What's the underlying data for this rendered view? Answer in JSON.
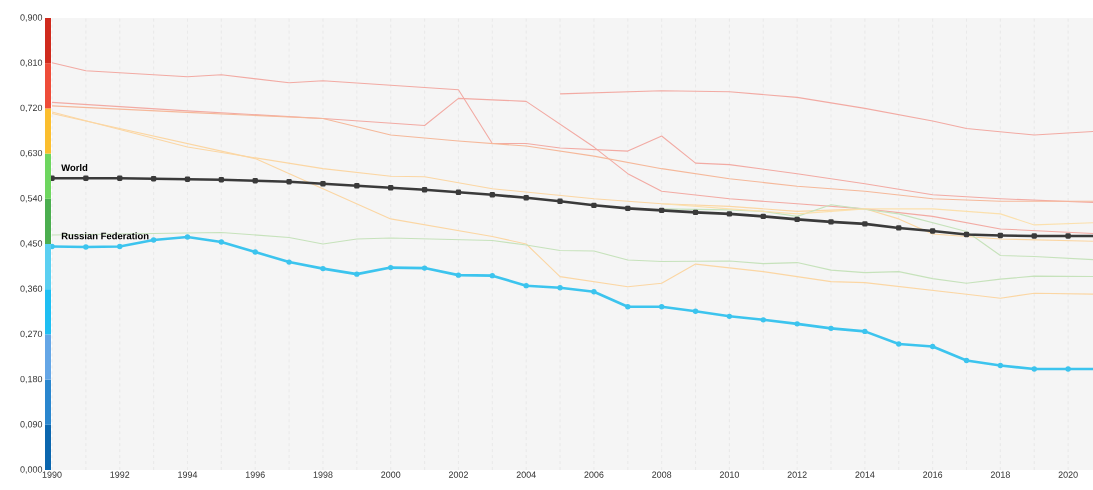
{
  "chart_data": {
    "type": "line",
    "xlim": [
      1990,
      2021
    ],
    "ylim": [
      0,
      0.9
    ],
    "xticks": [
      1990,
      {
        "value": 1991,
        "label": null
      },
      1992,
      {
        "value": 1993,
        "label": null
      },
      1994,
      {
        "value": 1995,
        "label": null
      },
      1996,
      {
        "value": 1997,
        "label": null
      },
      1998,
      {
        "value": 1999,
        "label": null
      },
      2000,
      {
        "value": 2001,
        "label": null
      },
      2002,
      {
        "value": 2003,
        "label": null
      },
      2004,
      {
        "value": 2005,
        "label": null
      },
      2006,
      {
        "value": 2007,
        "label": null
      },
      2008,
      {
        "value": 2009,
        "label": null
      },
      2010,
      {
        "value": 2011,
        "label": null
      },
      2012,
      {
        "value": 2013,
        "label": null
      },
      2014,
      {
        "value": 2015,
        "label": null
      },
      2016,
      {
        "value": 2017,
        "label": null
      },
      2018,
      {
        "value": 2019,
        "label": null
      },
      2020,
      {
        "value": 2021,
        "label": null
      }
    ],
    "yticks": [
      {
        "value": 0,
        "label": "0,000"
      },
      {
        "value": 0.09,
        "label": "0,090"
      },
      {
        "value": 0.18,
        "label": "0,180"
      },
      {
        "value": 0.27,
        "label": "0,270"
      },
      {
        "value": 0.36,
        "label": "0,360"
      },
      {
        "value": 0.45,
        "label": "0,450"
      },
      {
        "value": 0.54,
        "label": "0,540"
      },
      {
        "value": 0.63,
        "label": "0,630"
      },
      {
        "value": 0.72,
        "label": "0,720"
      },
      {
        "value": 0.81,
        "label": "0,810"
      },
      {
        "value": 0.9,
        "label": "0,900"
      }
    ],
    "grid": "x",
    "series": [
      {
        "color": "#f2aaa3",
        "x": [
          1990,
          1991,
          1994,
          1995,
          1997,
          1998,
          2002,
          2003,
          2004,
          2005,
          2006,
          2007,
          2008,
          2009,
          2010,
          2012,
          2014,
          2016,
          2018,
          2021
        ],
        "values": [
          0.811,
          0.795,
          0.783,
          0.787,
          0.771,
          0.775,
          0.757,
          0.65,
          0.65,
          0.641,
          0.638,
          0.635,
          0.665,
          0.611,
          0.608,
          0.59,
          0.57,
          0.548,
          0.54,
          0.532
        ]
      },
      {
        "color": "#f2aaa3",
        "x": [
          1990,
          1994,
          1998,
          2001,
          2002,
          2004,
          2006,
          2007,
          2008,
          2010,
          2012,
          2014,
          2016,
          2018,
          2021
        ],
        "values": [
          0.732,
          0.715,
          0.7,
          0.686,
          0.74,
          0.734,
          0.643,
          0.59,
          0.555,
          0.54,
          0.53,
          0.52,
          0.505,
          0.48,
          0.47
        ]
      },
      {
        "color": "#f5b89a",
        "x": [
          1990,
          1994,
          1998,
          2000,
          2002,
          2004,
          2006,
          2008,
          2010,
          2012,
          2014,
          2016,
          2018,
          2021
        ],
        "values": [
          0.725,
          0.712,
          0.7,
          0.667,
          0.655,
          0.645,
          0.625,
          0.6,
          0.58,
          0.565,
          0.555,
          0.54,
          0.535,
          0.535
        ]
      },
      {
        "color": "#f2aaa3",
        "x": [
          2005,
          2008,
          2010,
          2012,
          2014,
          2016,
          2017,
          2019,
          2021
        ],
        "values": [
          0.749,
          0.755,
          0.753,
          0.742,
          0.72,
          0.695,
          0.68,
          0.667,
          0.675
        ]
      },
      {
        "color": "#fbd6a3",
        "x": [
          1990,
          1994,
          1998,
          2000,
          2001,
          2003,
          2006,
          2008,
          2010,
          2012,
          2014,
          2015,
          2016,
          2018,
          2021
        ],
        "values": [
          0.713,
          0.643,
          0.6,
          0.585,
          0.584,
          0.56,
          0.54,
          0.53,
          0.525,
          0.515,
          0.52,
          0.5,
          0.47,
          0.46,
          0.455
        ]
      },
      {
        "color": "#fbd6a3",
        "x": [
          1990,
          1996,
          2000,
          2003,
          2004,
          2005,
          2007,
          2008,
          2009,
          2011,
          2013,
          2014,
          2017,
          2018,
          2019,
          2021
        ],
        "values": [
          0.71,
          0.62,
          0.5,
          0.465,
          0.45,
          0.385,
          0.365,
          0.372,
          0.41,
          0.395,
          0.375,
          0.373,
          0.35,
          0.342,
          0.352,
          0.35
        ]
      },
      {
        "color": "#c6e2bb",
        "x": [
          1990,
          1995,
          1997,
          1998,
          1999,
          2000,
          2003,
          2004,
          2005,
          2006,
          2007,
          2008,
          2010,
          2011,
          2012,
          2013,
          2014,
          2015,
          2016,
          2017,
          2018,
          2019,
          2021
        ],
        "values": [
          0.468,
          0.473,
          0.463,
          0.45,
          0.46,
          0.462,
          0.457,
          0.448,
          0.437,
          0.436,
          0.418,
          0.415,
          0.416,
          0.411,
          0.413,
          0.398,
          0.393,
          0.395,
          0.381,
          0.372,
          0.38,
          0.386,
          0.385
        ]
      },
      {
        "color": "#c6e2bb",
        "x": [
          2008,
          2010,
          2011,
          2012,
          2013,
          2015,
          2017,
          2018,
          2019,
          2021
        ],
        "values": [
          0.52,
          0.518,
          0.515,
          0.505,
          0.528,
          0.51,
          0.475,
          0.427,
          0.425,
          0.418
        ]
      },
      {
        "color": "#fbe0ad",
        "x": [
          2008,
          2010,
          2012,
          2014,
          2016,
          2017,
          2018,
          2019,
          2021
        ],
        "values": [
          0.53,
          0.52,
          0.51,
          0.52,
          0.52,
          0.515,
          0.51,
          0.488,
          0.493
        ]
      },
      {
        "name": "World",
        "color": "#3a3a3a",
        "marker": "square",
        "x": [
          1990,
          1991,
          1992,
          1993,
          1994,
          1995,
          1996,
          1997,
          1998,
          1999,
          2000,
          2001,
          2002,
          2003,
          2004,
          2005,
          2006,
          2007,
          2008,
          2009,
          2010,
          2011,
          2012,
          2013,
          2014,
          2015,
          2016,
          2017,
          2018,
          2019,
          2020,
          2021
        ],
        "values": [
          0.581,
          0.581,
          0.581,
          0.58,
          0.579,
          0.578,
          0.576,
          0.574,
          0.57,
          0.566,
          0.562,
          0.558,
          0.553,
          0.548,
          0.542,
          0.535,
          0.527,
          0.521,
          0.517,
          0.513,
          0.51,
          0.505,
          0.499,
          0.494,
          0.49,
          0.482,
          0.476,
          0.469,
          0.467,
          0.466,
          0.466,
          0.466
        ]
      },
      {
        "name": "Russian Federation",
        "color": "#3cc4ee",
        "marker": "circle",
        "x": [
          1990,
          1991,
          1992,
          1993,
          1994,
          1995,
          1996,
          1997,
          1998,
          1999,
          2000,
          2001,
          2002,
          2003,
          2004,
          2005,
          2006,
          2007,
          2008,
          2009,
          2010,
          2011,
          2012,
          2013,
          2014,
          2015,
          2016,
          2017,
          2018,
          2019,
          2020,
          2021
        ],
        "values": [
          0.445,
          0.444,
          0.445,
          0.458,
          0.464,
          0.454,
          0.434,
          0.414,
          0.401,
          0.39,
          0.403,
          0.402,
          0.388,
          0.387,
          0.367,
          0.363,
          0.355,
          0.325,
          0.325,
          0.316,
          0.306,
          0.299,
          0.291,
          0.282,
          0.276,
          0.251,
          0.246,
          0.218,
          0.208,
          0.201,
          0.201,
          0.201
        ]
      }
    ]
  }
}
